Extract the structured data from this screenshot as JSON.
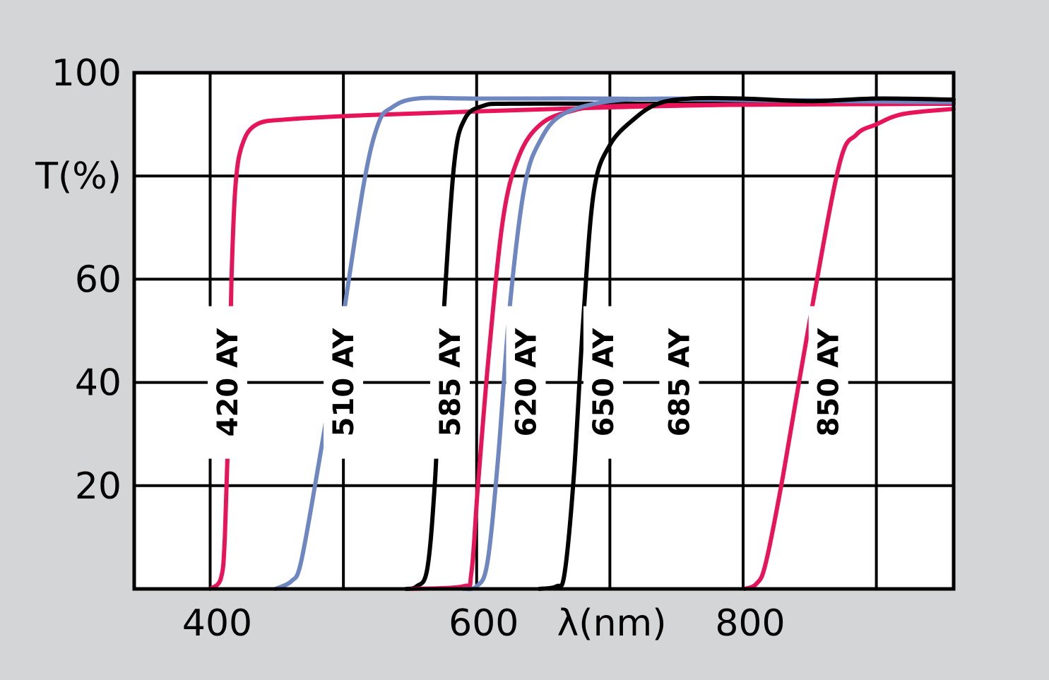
{
  "chart_data": {
    "type": "line",
    "title": "",
    "xlabel": "λ(nm)",
    "ylabel": "T(%)",
    "xlim": [
      343,
      958
    ],
    "ylim": [
      0,
      100
    ],
    "x_ticks": [
      400,
      600,
      800
    ],
    "x_tick_labels": [
      "400",
      "600",
      "800"
    ],
    "y_ticks": [
      20,
      40,
      60,
      100
    ],
    "y_tick_labels": [
      "20",
      "40",
      "60",
      "100"
    ],
    "x_gridlines": [
      400,
      500,
      600,
      700,
      800,
      900
    ],
    "y_gridlines": [
      20,
      40,
      60,
      80
    ],
    "grid": true,
    "series": [
      {
        "name": "420 AY",
        "color": "#e8145a",
        "label_x": 413,
        "label_y": 40,
        "points": [
          [
            400,
            0
          ],
          [
            408,
            2
          ],
          [
            411,
            10
          ],
          [
            414,
            35
          ],
          [
            416,
            60
          ],
          [
            419,
            78
          ],
          [
            424,
            86
          ],
          [
            435,
            90
          ],
          [
            460,
            91
          ],
          [
            520,
            91.8
          ],
          [
            600,
            92.5
          ],
          [
            700,
            93.3
          ],
          [
            800,
            93.8
          ],
          [
            958,
            94
          ]
        ]
      },
      {
        "name": "510 AY",
        "color": "#6f87c1",
        "label_x": 500,
        "label_y": 40,
        "points": [
          [
            449,
            0
          ],
          [
            461,
            1.5
          ],
          [
            468,
            5
          ],
          [
            480,
            22
          ],
          [
            497,
            48
          ],
          [
            515,
            78
          ],
          [
            526,
            90
          ],
          [
            536,
            93.2
          ],
          [
            555,
            95
          ],
          [
            600,
            95
          ],
          [
            700,
            95
          ],
          [
            800,
            94.7
          ],
          [
            900,
            94.6
          ],
          [
            958,
            94.3
          ]
        ]
      },
      {
        "name": "585 AY",
        "color": "#000000",
        "label_x": 580,
        "label_y": 40,
        "points": [
          [
            547,
            0
          ],
          [
            555,
            0.5
          ],
          [
            563,
            4
          ],
          [
            569,
            22
          ],
          [
            575,
            52
          ],
          [
            583,
            82
          ],
          [
            591,
            91
          ],
          [
            605,
            93.6
          ],
          [
            625,
            94
          ],
          [
            700,
            94
          ],
          [
            800,
            94
          ],
          [
            850,
            94.2
          ],
          [
            880,
            94.2
          ],
          [
            890,
            94.8
          ],
          [
            900,
            95
          ],
          [
            920,
            94.8
          ],
          [
            958,
            94.8
          ]
        ]
      },
      {
        "name": "620 AY",
        "color": "#e8145a",
        "label_x": 637,
        "label_y": 40,
        "points": [
          [
            551,
            0
          ],
          [
            590,
            0.5
          ],
          [
            596,
            3
          ],
          [
            601,
            20
          ],
          [
            609,
            45
          ],
          [
            620,
            72
          ],
          [
            632,
            84
          ],
          [
            648,
            90
          ],
          [
            670,
            92.5
          ],
          [
            700,
            93.5
          ],
          [
            800,
            93.8
          ],
          [
            958,
            94
          ]
        ]
      },
      {
        "name": "650 AY",
        "color": "#6f87c1",
        "label_x": 695,
        "label_y": 40,
        "points": [
          [
            590,
            0
          ],
          [
            600,
            0.5
          ],
          [
            608,
            5
          ],
          [
            616,
            25
          ],
          [
            625,
            55
          ],
          [
            636,
            78
          ],
          [
            648,
            87
          ],
          [
            665,
            92
          ],
          [
            700,
            94.5
          ],
          [
            745,
            95
          ],
          [
            800,
            94.7
          ],
          [
            958,
            94.3
          ]
        ]
      },
      {
        "name": "685 AY",
        "color": "#000000",
        "label_x": 752,
        "label_y": 40,
        "points": [
          [
            647,
            0
          ],
          [
            660,
            0.5
          ],
          [
            666,
            3
          ],
          [
            673,
            22
          ],
          [
            680,
            52
          ],
          [
            688,
            77
          ],
          [
            700,
            86
          ],
          [
            718,
            91
          ],
          [
            736,
            94
          ],
          [
            760,
            95
          ],
          [
            800,
            95
          ],
          [
            850,
            94.5
          ],
          [
            900,
            95
          ],
          [
            958,
            94.8
          ]
        ]
      },
      {
        "name": "850 AY",
        "color": "#e8145a",
        "label_x": 864,
        "label_y": 40,
        "points": [
          [
            801,
            0
          ],
          [
            810,
            1
          ],
          [
            817,
            5
          ],
          [
            830,
            22
          ],
          [
            850,
            52
          ],
          [
            872,
            82
          ],
          [
            885,
            88
          ],
          [
            900,
            90
          ],
          [
            920,
            92
          ],
          [
            958,
            93
          ]
        ]
      }
    ]
  }
}
